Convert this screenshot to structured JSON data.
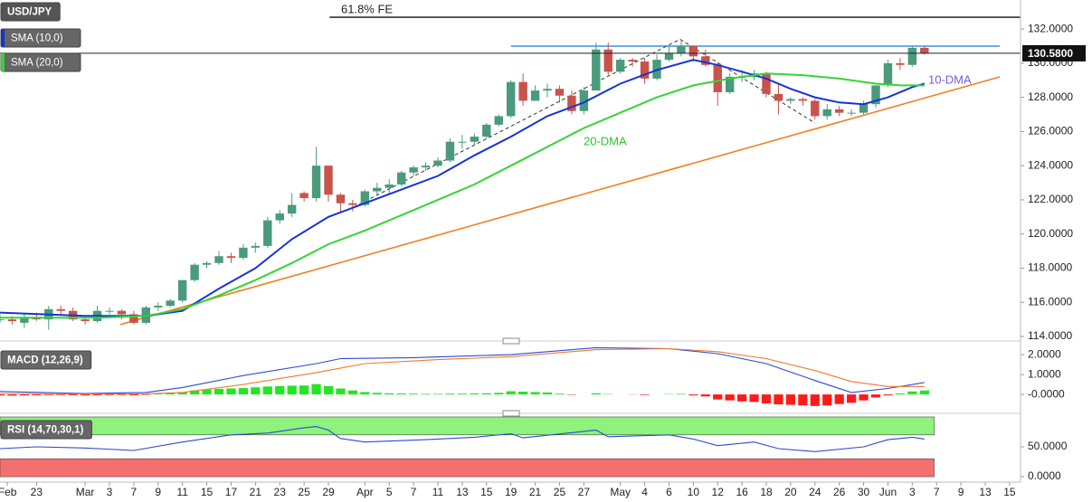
{
  "chart_data": [
    {
      "type": "candlestick",
      "title": "USD/JPY",
      "open": [
        115.0,
        115.0,
        114.8,
        115.1,
        115.0,
        115.6,
        115.5,
        115.0,
        114.9,
        115.5,
        115.5,
        115.3,
        114.8,
        115.7,
        115.8,
        116.1,
        117.3,
        118.2,
        118.3,
        118.7,
        118.6,
        119.2,
        119.3,
        120.8,
        121.2,
        122.4,
        122.1,
        124.0,
        122.3,
        121.8,
        121.7,
        122.5,
        122.7,
        122.9,
        123.6,
        123.9,
        124.0,
        124.3,
        125.4,
        125.4,
        125.7,
        126.4,
        126.9,
        128.9,
        127.8,
        128.4,
        128.5,
        128.1,
        127.2,
        128.4,
        130.8,
        129.5,
        130.2,
        130.1,
        129.1,
        130.2,
        130.6,
        131.0,
        130.4,
        129.9,
        128.3,
        129.2,
        129.2,
        129.4,
        128.2,
        127.8,
        127.9,
        127.8,
        126.9,
        127.3,
        127.1,
        127.1,
        127.6,
        128.7,
        130.0,
        129.9,
        130.9
      ],
      "high": [
        115.3,
        115.2,
        115.3,
        115.4,
        115.8,
        115.8,
        115.7,
        115.2,
        115.8,
        115.7,
        115.6,
        115.5,
        115.8,
        116.0,
        116.2,
        117.3,
        118.3,
        118.4,
        119.0,
        118.9,
        119.4,
        119.5,
        121.0,
        121.4,
        122.4,
        122.5,
        125.1,
        124.0,
        122.4,
        122.0,
        122.6,
        123.0,
        123.2,
        123.7,
        124.0,
        124.2,
        124.5,
        125.6,
        125.8,
        125.9,
        126.5,
        127.0,
        129.0,
        129.4,
        128.7,
        128.8,
        128.7,
        128.4,
        128.6,
        131.2,
        131.2,
        130.3,
        130.3,
        130.3,
        130.5,
        131.0,
        131.3,
        131.0,
        130.8,
        130.0,
        129.4,
        129.6,
        129.6,
        129.5,
        128.8,
        128.0,
        128.0,
        127.9,
        127.6,
        127.5,
        127.3,
        127.8,
        128.7,
        130.2,
        130.3,
        131.0,
        131.0
      ],
      "low": [
        114.8,
        114.7,
        114.5,
        114.9,
        114.4,
        115.3,
        114.9,
        114.7,
        114.8,
        115.3,
        115.0,
        114.7,
        114.7,
        115.5,
        115.7,
        116.0,
        117.2,
        118.0,
        118.2,
        118.3,
        118.5,
        118.9,
        119.2,
        120.6,
        121.0,
        121.9,
        121.9,
        121.9,
        121.3,
        121.3,
        121.6,
        122.3,
        122.4,
        122.8,
        123.4,
        123.7,
        123.9,
        124.2,
        125.0,
        125.2,
        125.6,
        126.3,
        126.8,
        127.5,
        127.8,
        128.0,
        127.7,
        127.0,
        127.0,
        128.4,
        129.3,
        129.4,
        129.8,
        128.8,
        129.0,
        130.1,
        130.4,
        130.1,
        129.8,
        127.5,
        128.2,
        128.9,
        129.0,
        128.0,
        127.0,
        127.6,
        127.5,
        126.7,
        126.7,
        126.9,
        126.9,
        127.0,
        127.4,
        128.6,
        129.6,
        129.8,
        130.5
      ],
      "close": [
        115.0,
        114.9,
        115.1,
        115.0,
        115.6,
        115.5,
        115.0,
        114.9,
        115.5,
        115.5,
        115.3,
        114.8,
        115.7,
        115.8,
        116.1,
        117.3,
        118.2,
        118.3,
        118.7,
        118.6,
        119.2,
        119.3,
        120.8,
        121.2,
        121.7,
        122.1,
        124.0,
        122.3,
        121.8,
        121.7,
        122.5,
        122.7,
        122.9,
        123.6,
        123.9,
        124.0,
        124.3,
        125.4,
        125.4,
        125.7,
        126.4,
        126.9,
        128.9,
        127.8,
        128.4,
        128.5,
        128.1,
        127.2,
        128.4,
        130.8,
        129.5,
        130.2,
        130.1,
        129.1,
        130.2,
        130.6,
        131.0,
        130.4,
        129.9,
        128.3,
        129.2,
        129.2,
        129.4,
        128.2,
        127.8,
        127.9,
        127.8,
        126.9,
        127.3,
        127.1,
        127.1,
        127.6,
        128.7,
        130.0,
        129.9,
        130.9,
        130.58
      ],
      "up_color": "#4a9a7c",
      "down_color": "#c8534b",
      "xlim": [
        0,
        83.9
      ],
      "ylim": [
        114,
        133.7
      ],
      "yticks": [
        {
          "value": 114,
          "label": "114.0000"
        },
        {
          "value": 116,
          "label": "116.0000"
        },
        {
          "value": 118,
          "label": "118.0000"
        },
        {
          "value": 120,
          "label": "120.0000"
        },
        {
          "value": 122,
          "label": "122.0000"
        },
        {
          "value": 124,
          "label": "124.0000"
        },
        {
          "value": 126,
          "label": "126.0000"
        },
        {
          "value": 128,
          "label": "128.0000"
        },
        {
          "value": 130,
          "label": "130.0000"
        },
        {
          "value": 132,
          "label": "132.0000"
        }
      ],
      "xticks": [
        {
          "value": 0.6,
          "label": "Feb"
        },
        {
          "value": 3,
          "label": "23"
        },
        {
          "value": 7,
          "label": "Mar"
        },
        {
          "value": 9,
          "label": "3"
        },
        {
          "value": 11,
          "label": "7"
        },
        {
          "value": 13,
          "label": "9"
        },
        {
          "value": 15,
          "label": "11"
        },
        {
          "value": 17,
          "label": "15"
        },
        {
          "value": 19,
          "label": "17"
        },
        {
          "value": 21,
          "label": "21"
        },
        {
          "value": 23,
          "label": "23"
        },
        {
          "value": 25,
          "label": "25"
        },
        {
          "value": 27,
          "label": "29"
        },
        {
          "value": 30,
          "label": "Apr"
        },
        {
          "value": 32,
          "label": "5"
        },
        {
          "value": 34,
          "label": "7"
        },
        {
          "value": 36,
          "label": "11"
        },
        {
          "value": 38,
          "label": "13"
        },
        {
          "value": 40,
          "label": "15"
        },
        {
          "value": 42,
          "label": "19"
        },
        {
          "value": 44,
          "label": "21"
        },
        {
          "value": 46,
          "label": "25"
        },
        {
          "value": 48,
          "label": "27"
        },
        {
          "value": 51,
          "label": "May"
        },
        {
          "value": 53,
          "label": "4"
        },
        {
          "value": 55,
          "label": "6"
        },
        {
          "value": 57,
          "label": "10"
        },
        {
          "value": 59,
          "label": "12"
        },
        {
          "value": 61,
          "label": "16"
        },
        {
          "value": 63,
          "label": "18"
        },
        {
          "value": 65,
          "label": "20"
        },
        {
          "value": 67,
          "label": "24"
        },
        {
          "value": 69,
          "label": "26"
        },
        {
          "value": 71,
          "label": "30"
        },
        {
          "value": 73,
          "label": "Jun"
        },
        {
          "value": 75,
          "label": "3"
        },
        {
          "value": 77,
          "label": "7"
        },
        {
          "value": 79,
          "label": "9"
        },
        {
          "value": 81,
          "label": "13"
        },
        {
          "value": 83,
          "label": "15"
        }
      ],
      "last_price": {
        "value": 130.58,
        "label": "130.5800"
      },
      "series": [
        {
          "name": "SMA (10,0)",
          "color": "#1733d6",
          "x": [
            0,
            7,
            12,
            15,
            18,
            21,
            24,
            27,
            30,
            33,
            36,
            39,
            42,
            45,
            48,
            51,
            54,
            57,
            59,
            61,
            63,
            65,
            67,
            69,
            71,
            73,
            75,
            76
          ],
          "values": [
            115.4,
            115.2,
            115.2,
            115.5,
            116.8,
            118.0,
            119.7,
            121.0,
            121.8,
            122.6,
            123.4,
            124.6,
            125.7,
            126.9,
            127.7,
            128.8,
            129.6,
            130.2,
            129.9,
            129.5,
            129.1,
            128.5,
            128.0,
            127.7,
            127.6,
            128.0,
            128.6,
            128.8
          ]
        },
        {
          "name": "SMA (20,0)",
          "color": "#35d435",
          "x": [
            0,
            8,
            12,
            15,
            18,
            21,
            24,
            27,
            30,
            33,
            36,
            39,
            42,
            45,
            48,
            51,
            54,
            57,
            60,
            63,
            66,
            69,
            72,
            74,
            76
          ],
          "values": [
            115.1,
            115.1,
            115.2,
            115.6,
            116.4,
            117.3,
            118.3,
            119.4,
            120.2,
            121.1,
            122.0,
            122.9,
            124.0,
            125.1,
            126.2,
            127.1,
            128.0,
            128.7,
            129.1,
            129.4,
            129.3,
            129.1,
            128.8,
            128.7,
            128.7
          ]
        }
      ],
      "ref_lines": [
        {
          "x": [
            27.1,
            83.9
          ],
          "y": [
            132.69,
            132.69
          ],
          "color": "#333333"
        },
        {
          "x": [
            42.0,
            82.2
          ],
          "y": [
            131.0,
            131.0
          ],
          "color": "#3a92e0"
        },
        {
          "x": [
            9.9,
            82.2
          ],
          "y": [
            114.7,
            129.2
          ],
          "color": "#f08020"
        },
        {
          "x": [
            28.6,
            55.9,
            67.0
          ],
          "y": [
            121.4,
            131.4,
            126.5
          ],
          "color": "#333333",
          "dashed": true
        }
      ],
      "annotations": [
        "61.8% FE",
        "10-DMA",
        "20-DMA"
      ]
    },
    {
      "type": "macd",
      "title": "MACD (12,26,9)",
      "ylim": [
        -0.86,
        2.55
      ],
      "yticks": [
        {
          "value": 2,
          "label": "2.0000"
        },
        {
          "value": 1,
          "label": "1.0000"
        },
        {
          "value": 0,
          "label": "-0.0000"
        }
      ],
      "histogram": {
        "up_color": "#22e622",
        "down_color": "#ff1a1a",
        "values": [
          -0.05,
          -0.06,
          -0.05,
          -0.04,
          -0.03,
          -0.03,
          -0.04,
          -0.05,
          -0.04,
          -0.03,
          -0.03,
          -0.04,
          -0.02,
          0.03,
          0.06,
          0.12,
          0.2,
          0.25,
          0.28,
          0.3,
          0.32,
          0.36,
          0.4,
          0.42,
          0.44,
          0.45,
          0.52,
          0.42,
          0.3,
          0.2,
          0.12,
          0.08,
          0.06,
          0.05,
          0.04,
          0.03,
          0.03,
          0.04,
          0.04,
          0.05,
          0.06,
          0.08,
          0.16,
          0.14,
          0.12,
          0.1,
          0.04,
          -0.02,
          0.0,
          0.06,
          0.02,
          0.0,
          -0.01,
          -0.03,
          0.0,
          0.02,
          0.03,
          -0.05,
          -0.1,
          -0.25,
          -0.3,
          -0.35,
          -0.38,
          -0.45,
          -0.5,
          -0.52,
          -0.55,
          -0.58,
          -0.55,
          -0.48,
          -0.42,
          -0.3,
          -0.15,
          -0.05,
          0.05,
          0.15,
          0.2
        ]
      },
      "series": [
        {
          "color": "#2c49d8",
          "x": [
            0,
            7,
            12,
            15,
            20,
            26,
            28,
            34,
            42,
            49,
            55,
            59,
            63,
            67,
            70,
            73,
            76
          ],
          "values": [
            0.15,
            0.05,
            0.1,
            0.35,
            0.95,
            1.55,
            1.8,
            1.85,
            2.0,
            2.35,
            2.3,
            2.05,
            1.55,
            0.7,
            0.1,
            0.3,
            0.6
          ]
        },
        {
          "color": "#f07a2a",
          "x": [
            0,
            7,
            12,
            15,
            20,
            26,
            30,
            36,
            42,
            49,
            55,
            59,
            63,
            67,
            70,
            73,
            76
          ],
          "values": [
            0.05,
            0.02,
            0.03,
            0.1,
            0.5,
            1.1,
            1.55,
            1.75,
            1.9,
            2.25,
            2.3,
            2.15,
            1.8,
            1.2,
            0.65,
            0.4,
            0.4
          ]
        }
      ]
    },
    {
      "type": "rsi",
      "title": "RSI (14,70,30,1)",
      "ylim": [
        -6,
        103
      ],
      "yticks": [
        {
          "value": 50,
          "label": "50.0000"
        },
        {
          "value": 0,
          "label": "0.0000"
        }
      ],
      "bands": [
        {
          "range": [
            70,
            100
          ],
          "color": "#8ef27c"
        },
        {
          "range": [
            0,
            30
          ],
          "color": "#f47070"
        }
      ],
      "series": [
        {
          "color": "#2c49d8",
          "x": [
            0,
            3,
            7,
            11,
            15,
            19,
            22,
            25,
            26,
            27,
            28,
            30,
            35,
            39,
            42,
            43,
            49,
            50,
            55,
            57,
            59,
            62,
            64,
            67,
            71,
            73,
            75,
            76
          ],
          "values": [
            47,
            50,
            48,
            44,
            58,
            70,
            73,
            82,
            84,
            78,
            64,
            58,
            62,
            66,
            72,
            65,
            78,
            67,
            70,
            63,
            52,
            58,
            47,
            42,
            50,
            62,
            66,
            63
          ]
        }
      ]
    }
  ]
}
